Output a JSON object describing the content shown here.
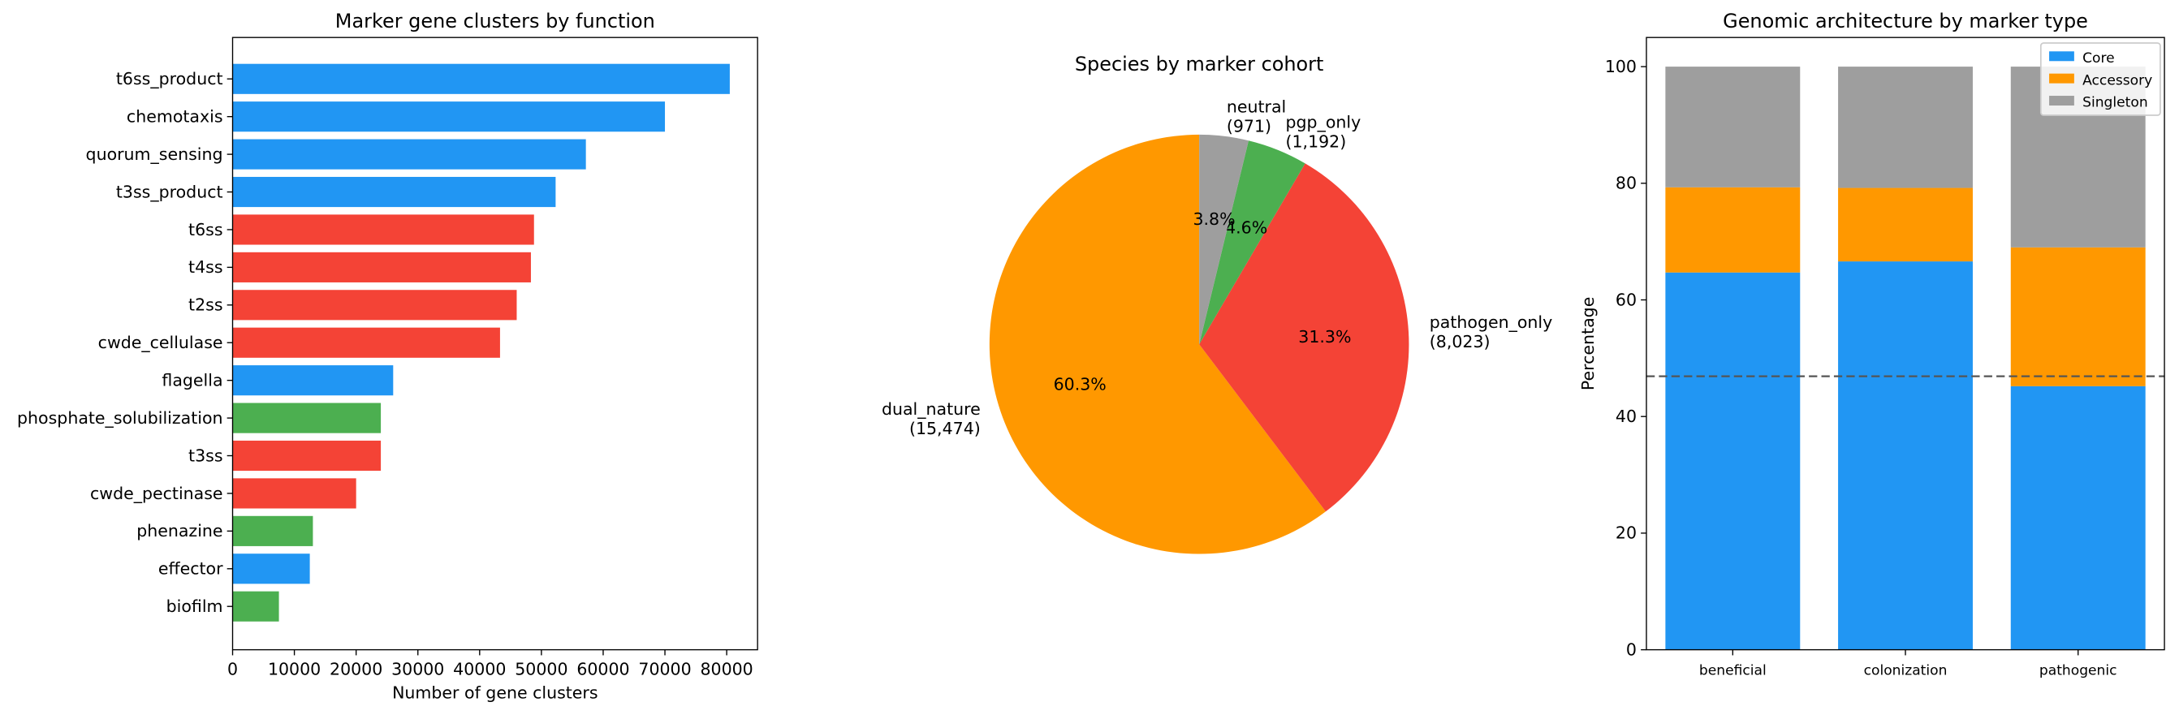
{
  "chart_data": [
    {
      "type": "barh",
      "title": "Marker gene clusters by function",
      "xlabel": "Number of gene clusters",
      "categories": [
        "t6ss_product",
        "chemotaxis",
        "quorum_sensing",
        "t3ss_product",
        "t6ss",
        "t4ss",
        "t2ss",
        "cwde_cellulase",
        "flagella",
        "phosphate_solubilization",
        "t3ss",
        "cwde_pectinase",
        "phenazine",
        "effector",
        "biofilm"
      ],
      "values": [
        80500,
        70000,
        57200,
        52300,
        48800,
        48300,
        46000,
        43300,
        26000,
        24000,
        24000,
        20000,
        13000,
        12500,
        7500
      ],
      "colors": [
        "#2196F3",
        "#2196F3",
        "#2196F3",
        "#2196F3",
        "#F44336",
        "#F44336",
        "#F44336",
        "#F44336",
        "#2196F3",
        "#4CAF50",
        "#F44336",
        "#F44336",
        "#4CAF50",
        "#2196F3",
        "#4CAF50"
      ],
      "xlim": [
        0,
        85000
      ],
      "xticks": [
        0,
        10000,
        20000,
        30000,
        40000,
        50000,
        60000,
        70000,
        80000
      ]
    },
    {
      "type": "pie",
      "title": "Species by marker cohort",
      "categories": [
        "dual_nature",
        "pathogen_only",
        "pgp_only",
        "neutral"
      ],
      "values": [
        15474,
        8023,
        1192,
        971
      ],
      "value_labels": [
        "(15,474)",
        "(8,023)",
        "(1,192)",
        "(971)"
      ],
      "percent_labels": [
        "60.3%",
        "31.3%",
        "4.6%",
        "3.8%"
      ],
      "colors": [
        "#FF9800",
        "#F44336",
        "#4CAF50",
        "#9E9E9E"
      ]
    },
    {
      "type": "stacked_bar",
      "title": "Genomic architecture by marker type",
      "ylabel": "Percentage",
      "categories": [
        "beneficial",
        "colonization",
        "pathogenic"
      ],
      "series": [
        {
          "name": "Core",
          "color": "#2196F3",
          "values": [
            64.7,
            66.6,
            45.2
          ]
        },
        {
          "name": "Accessory",
          "color": "#FF9800",
          "values": [
            14.6,
            12.6,
            23.8
          ]
        },
        {
          "name": "Singleton",
          "color": "#9E9E9E",
          "values": [
            20.7,
            20.8,
            31.0
          ]
        }
      ],
      "reference_line": 46.9,
      "ylim": [
        0,
        105
      ],
      "yticks": [
        0,
        20,
        40,
        60,
        80,
        100
      ],
      "legend": "upper right"
    }
  ]
}
